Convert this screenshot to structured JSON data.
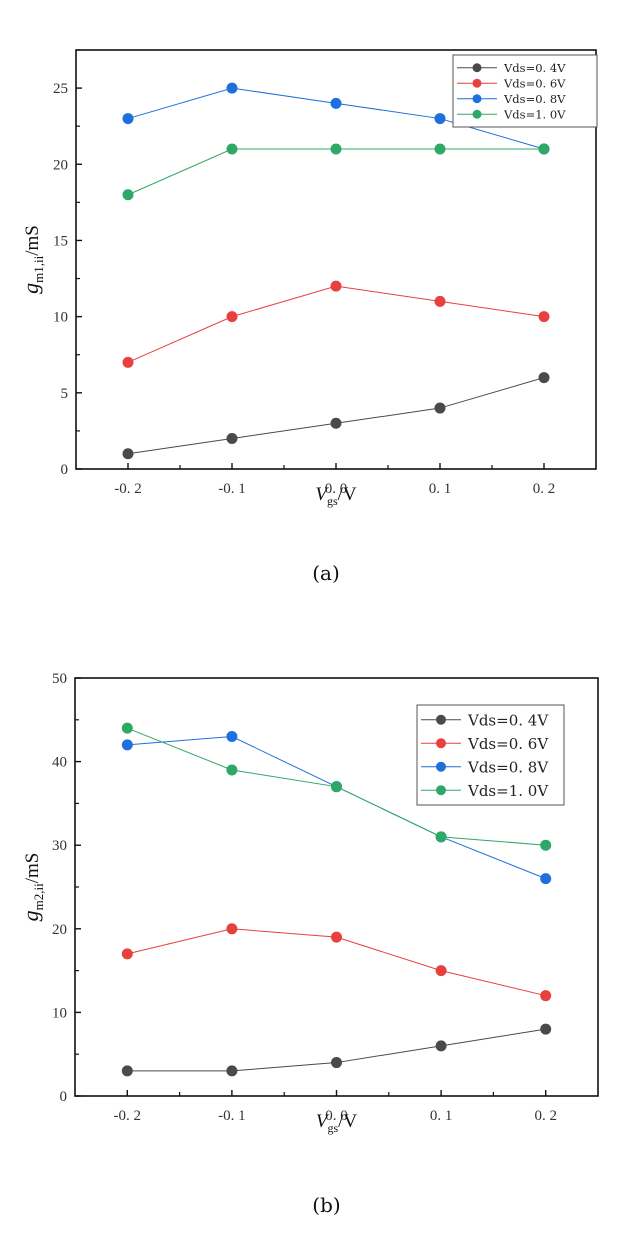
{
  "chart_data": [
    {
      "type": "line",
      "panel": "a",
      "caption": "(a)",
      "xlabel_main": "V",
      "xlabel_sub": "gs",
      "xlabel_suffix": "/V",
      "ylabel_main": "g",
      "ylabel_sub": "m1,ii",
      "ylabel_suffix": "/mS",
      "x": [
        -0.2,
        -0.1,
        0.0,
        0.1,
        0.2
      ],
      "xticks": [
        -0.2,
        -0.1,
        0.0,
        0.1,
        0.2
      ],
      "xtick_labels": [
        "-0. 2",
        "-0. 1",
        "0. 0",
        "0. 1",
        "0. 2"
      ],
      "xlim": [
        -0.25,
        0.25
      ],
      "yticks": [
        0,
        5,
        10,
        15,
        20,
        25
      ],
      "ytick_labels": [
        "0",
        "5",
        "10",
        "15",
        "20",
        "25"
      ],
      "ylim": [
        0,
        27.5
      ],
      "grid": false,
      "legend_position": "top-right",
      "series": [
        {
          "name": "Vds=0. 4V",
          "color": "#4a4a4a",
          "values": [
            1,
            2,
            3,
            4,
            6
          ]
        },
        {
          "name": "Vds=0. 6V",
          "color": "#e8403f",
          "values": [
            7,
            10,
            12,
            11,
            10
          ]
        },
        {
          "name": "Vds=0. 8V",
          "color": "#1f6fdc",
          "values": [
            23,
            25,
            24,
            23,
            21
          ]
        },
        {
          "name": "Vds=1. 0V",
          "color": "#2ea866",
          "values": [
            18,
            21,
            21,
            21,
            21
          ]
        }
      ]
    },
    {
      "type": "line",
      "panel": "b",
      "caption": "(b)",
      "xlabel_main": "V",
      "xlabel_sub": "gs",
      "xlabel_suffix": "/V",
      "ylabel_main": "g",
      "ylabel_sub": "m2,ii",
      "ylabel_suffix": "/mS",
      "x": [
        -0.2,
        -0.1,
        0.0,
        0.1,
        0.2
      ],
      "xticks": [
        -0.2,
        -0.1,
        0.0,
        0.1,
        0.2
      ],
      "xtick_labels": [
        "-0. 2",
        "-0. 1",
        "0. 0",
        "0. 1",
        "0. 2"
      ],
      "xlim": [
        -0.25,
        0.25
      ],
      "yticks": [
        0,
        10,
        20,
        30,
        40,
        50
      ],
      "ytick_labels": [
        "0",
        "10",
        "20",
        "30",
        "40",
        "50"
      ],
      "ylim": [
        0,
        50
      ],
      "grid": false,
      "legend_position": "top-right",
      "series": [
        {
          "name": "Vds=0. 4V",
          "color": "#4a4a4a",
          "values": [
            3,
            3,
            4,
            6,
            8
          ]
        },
        {
          "name": "Vds=0. 6V",
          "color": "#e8403f",
          "values": [
            17,
            20,
            19,
            15,
            12
          ]
        },
        {
          "name": "Vds=0. 8V",
          "color": "#1f6fdc",
          "values": [
            42,
            43,
            37,
            31,
            26
          ]
        },
        {
          "name": "Vds=1. 0V",
          "color": "#2ea866",
          "values": [
            44,
            39,
            37,
            31,
            30
          ]
        }
      ]
    }
  ]
}
